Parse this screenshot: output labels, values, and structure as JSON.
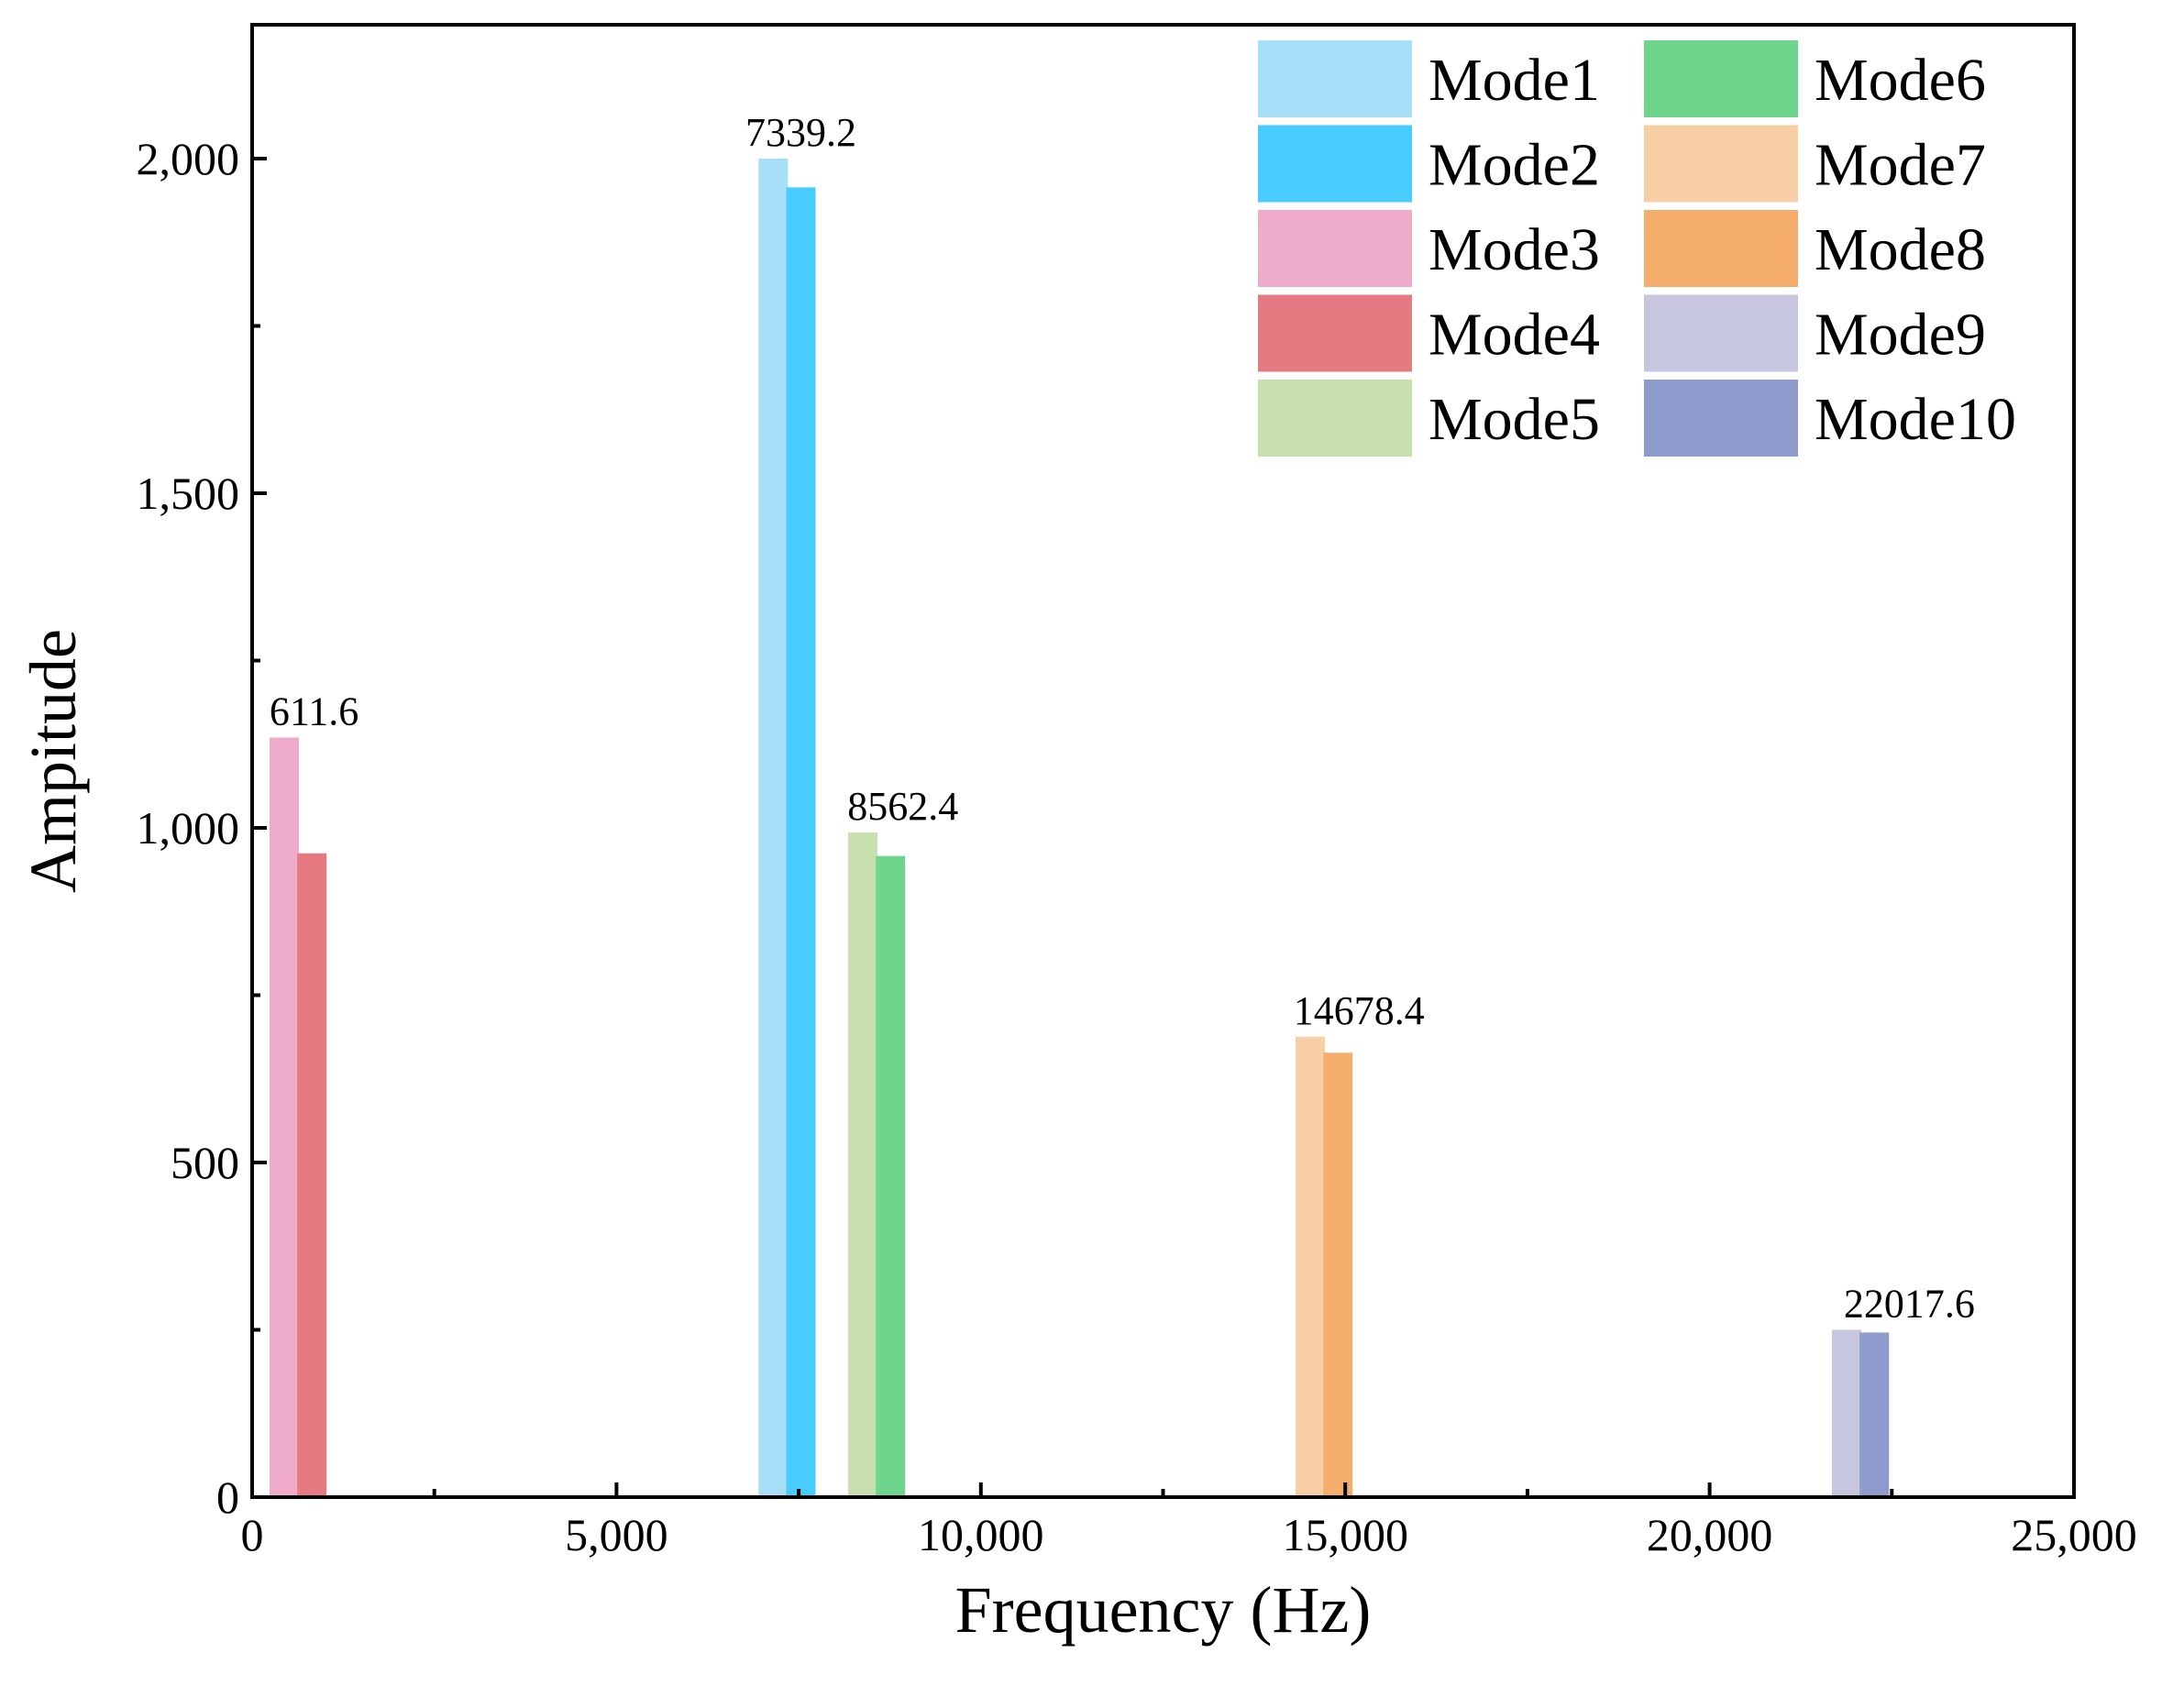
{
  "chart_data": {
    "type": "bar",
    "title": "",
    "xlabel": "Frequency (Hz)",
    "ylabel": "Ampitude",
    "xlim": [
      0,
      25000
    ],
    "ylim": [
      0,
      2200
    ],
    "xticks": [
      0,
      5000,
      10000,
      15000,
      20000,
      25000
    ],
    "xtick_labels": [
      "0",
      "5,000",
      "10,000",
      "15,000",
      "20,000",
      "25,000"
    ],
    "yticks": [
      0,
      500,
      1000,
      1500,
      2000
    ],
    "ytick_labels": [
      "0",
      "500",
      "1,000",
      "1,500",
      "2,000"
    ],
    "grid": false,
    "legend_position": "top-right",
    "series": [
      {
        "name": "Mode1",
        "color": "#a6dff7",
        "x": 7150,
        "value": 2000
      },
      {
        "name": "Mode2",
        "color": "#48cbfd",
        "x": 7530,
        "value": 1957
      },
      {
        "name": "Mode3",
        "color": "#efabca",
        "x": 440,
        "value": 1135
      },
      {
        "name": "Mode4",
        "color": "#e67a83",
        "x": 820,
        "value": 962
      },
      {
        "name": "Mode5",
        "color": "#c7dfad",
        "x": 8380,
        "value": 993
      },
      {
        "name": "Mode6",
        "color": "#6dd58c",
        "x": 8760,
        "value": 958
      },
      {
        "name": "Mode7",
        "color": "#f8cea5",
        "x": 14520,
        "value": 688
      },
      {
        "name": "Mode8",
        "color": "#f5ad6c",
        "x": 14900,
        "value": 664
      },
      {
        "name": "Mode9",
        "color": "#c6c6df",
        "x": 21880,
        "value": 250
      },
      {
        "name": "Mode10",
        "color": "#8d9ccd",
        "x": 22260,
        "value": 246
      }
    ],
    "annotations": [
      {
        "text": "611.6",
        "x": 850,
        "y": 1135
      },
      {
        "text": "7339.2",
        "x": 7530,
        "y": 2000
      },
      {
        "text": "8562.4",
        "x": 8930,
        "y": 993
      },
      {
        "text": "14678.4",
        "x": 15190,
        "y": 688
      },
      {
        "text": "22017.6",
        "x": 22740,
        "y": 250
      }
    ]
  }
}
